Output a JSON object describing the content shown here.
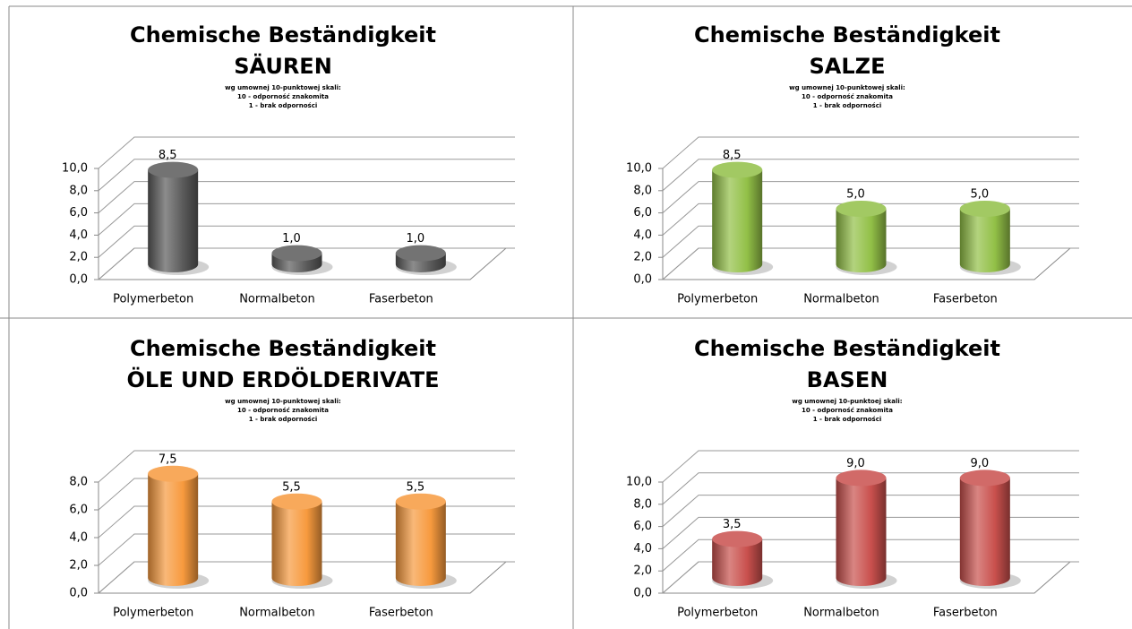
{
  "chart_data": [
    {
      "type": "bar",
      "title": "Chemische Beständigkeit",
      "subtitle": "SÄUREN",
      "notes": [
        "wg umownej 10-punktowej skali:",
        "10 - odporność znakomita",
        "1 - brak odporności"
      ],
      "categories": [
        "Polymerbeton",
        "Normalbeton",
        "Faserbeton"
      ],
      "values": [
        8.5,
        1,
        1
      ],
      "value_labels": [
        "8,5",
        "1,0",
        "1,0"
      ],
      "color": "#5a5a5a",
      "ylim": [
        0,
        10
      ],
      "yticks": [
        {
          "value": 0,
          "label": "0,0"
        },
        {
          "value": 2,
          "label": "2,0"
        },
        {
          "value": 4,
          "label": "4,0"
        },
        {
          "value": 6,
          "label": "6,0"
        },
        {
          "value": 8,
          "label": "8,0"
        },
        {
          "value": 10,
          "label": "10,0"
        }
      ],
      "grid": true
    },
    {
      "type": "bar",
      "title": "Chemische Beständigkeit",
      "subtitle": "SALZE",
      "notes": [
        "wg umownej 10-punktowej skali:",
        "10 - odporność znakomita",
        "1 - brak odporności"
      ],
      "categories": [
        "Polymerbeton",
        "Normalbeton",
        "Faserbeton"
      ],
      "values": [
        8.5,
        5,
        5
      ],
      "value_labels": [
        "8,5",
        "5,0",
        "5,0"
      ],
      "color": "#92c047",
      "ylim": [
        0,
        10
      ],
      "yticks": [
        {
          "value": 0,
          "label": "0,0"
        },
        {
          "value": 2,
          "label": "2,0"
        },
        {
          "value": 4,
          "label": "4,0"
        },
        {
          "value": 6,
          "label": "6,0"
        },
        {
          "value": 8,
          "label": "8,0"
        },
        {
          "value": 10,
          "label": "10,0"
        }
      ],
      "grid": true
    },
    {
      "type": "bar",
      "title": "Chemische Beständigkeit",
      "subtitle": "ÖLE UND ERDÖLDERIVATE",
      "notes": [
        "wg umownej 10-punktowej skali:",
        "10 - odporność znakomita",
        "1 - brak odporności"
      ],
      "categories": [
        "Polymerbeton",
        "Normalbeton",
        "Faserbeton"
      ],
      "values": [
        7.5,
        5.5,
        5.5
      ],
      "value_labels": [
        "7,5",
        "5,5",
        "5,5"
      ],
      "color": "#f79a3e",
      "ylim": [
        0,
        8
      ],
      "yticks": [
        {
          "value": 0,
          "label": "0,0"
        },
        {
          "value": 2,
          "label": "2,0"
        },
        {
          "value": 4,
          "label": "4,0"
        },
        {
          "value": 6,
          "label": "6,0"
        },
        {
          "value": 8,
          "label": "8,0"
        }
      ],
      "grid": true
    },
    {
      "type": "bar",
      "title": "Chemische Beständigkeit",
      "subtitle": "BASEN",
      "notes": [
        "wg umownej 10-punktoej skali:",
        "10 - odporność znakomita",
        "1 - brak odporności"
      ],
      "categories": [
        "Polymerbeton",
        "Normalbeton",
        "Faserbeton"
      ],
      "values": [
        3.5,
        9,
        9
      ],
      "value_labels": [
        "3,5",
        "9,0",
        "9,0"
      ],
      "color": "#c9504d",
      "ylim": [
        0,
        10
      ],
      "yticks": [
        {
          "value": 0,
          "label": "0,0"
        },
        {
          "value": 2,
          "label": "2,0"
        },
        {
          "value": 4,
          "label": "4,0"
        },
        {
          "value": 6,
          "label": "6,0"
        },
        {
          "value": 8,
          "label": "8,0"
        },
        {
          "value": 10,
          "label": "10,0"
        }
      ],
      "grid": true
    }
  ]
}
